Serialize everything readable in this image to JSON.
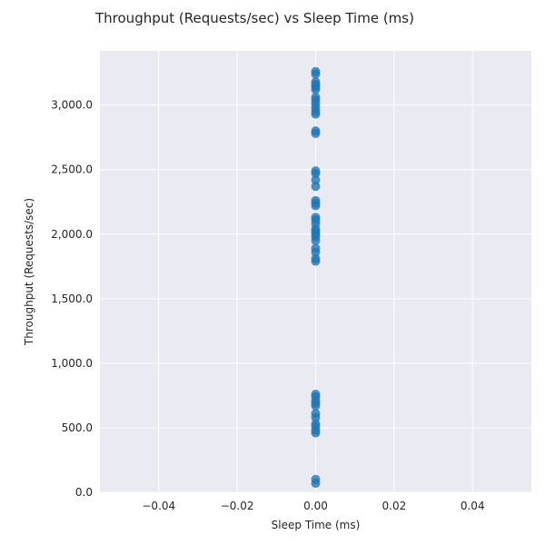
{
  "chart_data": {
    "type": "scatter",
    "title": "Throughput (Requests/sec) vs Sleep Time (ms)",
    "xlabel": "Sleep Time (ms)",
    "ylabel": "Throughput (Requests/sec)",
    "xlim": [
      -0.055,
      0.055
    ],
    "ylim": [
      0,
      3420
    ],
    "grid": true,
    "x_ticks": [
      {
        "value": -0.04,
        "label": "−0.04"
      },
      {
        "value": -0.02,
        "label": "−0.02"
      },
      {
        "value": 0.0,
        "label": "0.00"
      },
      {
        "value": 0.02,
        "label": "0.02"
      },
      {
        "value": 0.04,
        "label": "0.04"
      }
    ],
    "y_ticks": [
      {
        "value": 0,
        "label": "0.0"
      },
      {
        "value": 500,
        "label": "500.0"
      },
      {
        "value": 1000,
        "label": "1,000.0"
      },
      {
        "value": 1500,
        "label": "1,500.0"
      },
      {
        "value": 2000,
        "label": "2,000.0"
      },
      {
        "value": 2500,
        "label": "2,500.0"
      },
      {
        "value": 3000,
        "label": "3,000.0"
      }
    ],
    "series": [
      {
        "color": "#1f77b4",
        "points": [
          {
            "x": 0,
            "y": 70
          },
          {
            "x": 0,
            "y": 100
          },
          {
            "x": 0,
            "y": 460
          },
          {
            "x": 0,
            "y": 480
          },
          {
            "x": 0,
            "y": 510
          },
          {
            "x": 0,
            "y": 530
          },
          {
            "x": 0,
            "y": 580
          },
          {
            "x": 0,
            "y": 610
          },
          {
            "x": 0,
            "y": 670
          },
          {
            "x": 0,
            "y": 690
          },
          {
            "x": 0,
            "y": 710
          },
          {
            "x": 0,
            "y": 740
          },
          {
            "x": 0,
            "y": 760
          },
          {
            "x": 0,
            "y": 1790
          },
          {
            "x": 0,
            "y": 1810
          },
          {
            "x": 0,
            "y": 1860
          },
          {
            "x": 0,
            "y": 1890
          },
          {
            "x": 0,
            "y": 1950
          },
          {
            "x": 0,
            "y": 1980
          },
          {
            "x": 0,
            "y": 2000
          },
          {
            "x": 0,
            "y": 2020
          },
          {
            "x": 0,
            "y": 2040
          },
          {
            "x": 0,
            "y": 2080
          },
          {
            "x": 0,
            "y": 2110
          },
          {
            "x": 0,
            "y": 2130
          },
          {
            "x": 0,
            "y": 2220
          },
          {
            "x": 0,
            "y": 2240
          },
          {
            "x": 0,
            "y": 2260
          },
          {
            "x": 0,
            "y": 2370
          },
          {
            "x": 0,
            "y": 2420
          },
          {
            "x": 0,
            "y": 2470
          },
          {
            "x": 0,
            "y": 2490
          },
          {
            "x": 0,
            "y": 2780
          },
          {
            "x": 0,
            "y": 2800
          },
          {
            "x": 0,
            "y": 2930
          },
          {
            "x": 0,
            "y": 2950
          },
          {
            "x": 0,
            "y": 2980
          },
          {
            "x": 0,
            "y": 3010
          },
          {
            "x": 0,
            "y": 3040
          },
          {
            "x": 0,
            "y": 3060
          },
          {
            "x": 0,
            "y": 3120
          },
          {
            "x": 0,
            "y": 3140
          },
          {
            "x": 0,
            "y": 3160
          },
          {
            "x": 0,
            "y": 3180
          },
          {
            "x": 0,
            "y": 3240
          },
          {
            "x": 0,
            "y": 3260
          }
        ]
      }
    ]
  }
}
